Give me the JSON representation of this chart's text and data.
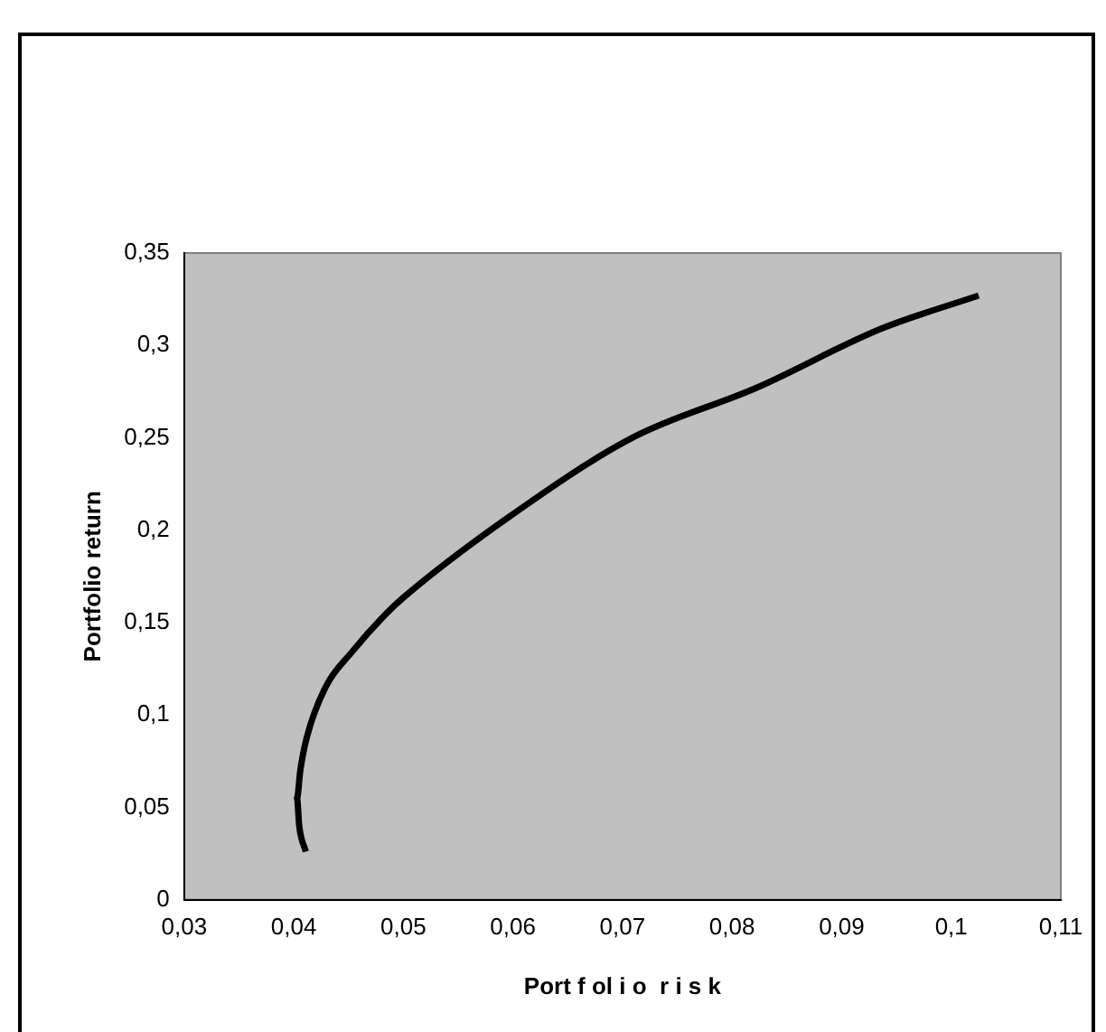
{
  "chart_data": {
    "type": "line",
    "xlabel": "Port f ol i o  r i s k",
    "ylabel": "Portfolio return",
    "xlim": [
      0.03,
      0.11
    ],
    "xticks": [
      {
        "value": 0.03,
        "label": "0,03"
      },
      {
        "value": 0.04,
        "label": "0,04"
      },
      {
        "value": 0.05,
        "label": "0,05"
      },
      {
        "value": 0.06,
        "label": "0,06"
      },
      {
        "value": 0.07,
        "label": "0,07"
      },
      {
        "value": 0.08,
        "label": "0,08"
      },
      {
        "value": 0.09,
        "label": "0,09"
      },
      {
        "value": 0.1,
        "label": "0,1"
      },
      {
        "value": 0.11,
        "label": "0,11"
      }
    ],
    "ylim": [
      0,
      0.35
    ],
    "yticks": [
      0,
      {
        "value": 0.05,
        "label": "0,05"
      },
      {
        "value": 0.1,
        "label": "0,1"
      },
      {
        "value": 0.15,
        "label": "0,15"
      },
      {
        "value": 0.2,
        "label": "0,2"
      },
      {
        "value": 0.25,
        "label": "0,25"
      },
      {
        "value": 0.3,
        "label": "0,3"
      },
      {
        "value": 0.35,
        "label": "0,35"
      }
    ],
    "grid": false,
    "legend": false,
    "marker": "none",
    "line_style": "solid",
    "series": [
      {
        "color": "#000000",
        "x": [
          0.0411,
          0.0405,
          0.0403,
          0.0406,
          0.0412,
          0.0429,
          0.0453,
          0.0483,
          0.0501,
          0.0596,
          0.0709,
          0.0822,
          0.0936,
          0.1025
        ],
        "values": [
          0.026,
          0.04,
          0.055,
          0.07,
          0.088,
          0.115,
          0.134,
          0.154,
          0.164,
          0.207,
          0.25,
          0.277,
          0.309,
          0.327
        ]
      }
    ]
  }
}
